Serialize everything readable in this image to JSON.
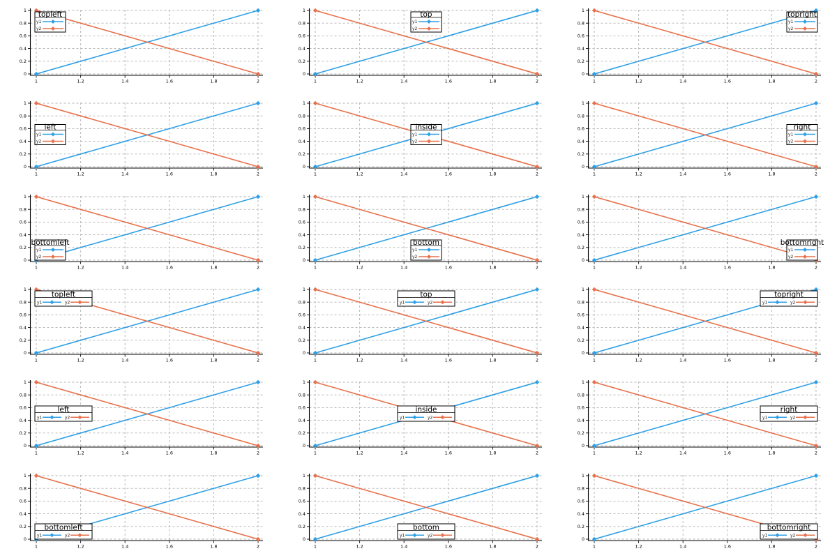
{
  "figure": {
    "rows": 6,
    "cols": 3,
    "background": "#ffffff",
    "grid_color": "#b0b0b0",
    "axis_color": "#000000",
    "legend_border_color": "#000000",
    "legend_background": "#ffffff"
  },
  "chart_data": {
    "type": "line",
    "x": [
      1,
      2
    ],
    "series": [
      {
        "name": "y1",
        "values": [
          0,
          1
        ],
        "color": "#2f9fe5",
        "marker": "diamond"
      },
      {
        "name": "y2",
        "values": [
          1,
          0
        ],
        "color": "#e7714b",
        "marker": "diamond"
      }
    ],
    "xlim": [
      1,
      2
    ],
    "ylim": [
      0,
      1
    ],
    "xticks": {
      "values": [
        1,
        1.2,
        1.4,
        1.6,
        1.8,
        2
      ],
      "labels": [
        "1",
        "1.2",
        "1.4",
        "1.6",
        "1.8",
        "2"
      ]
    },
    "yticks": {
      "values": [
        0,
        0.2,
        0.4,
        0.6,
        0.8,
        1
      ],
      "labels": [
        "0",
        "0.2",
        "0.4",
        "0.6",
        "0.8",
        "1"
      ]
    },
    "grid": true,
    "legend_position_note": "each subplot shows the same data with a titled legend at a different position",
    "subplots": [
      {
        "row": 1,
        "col": 1,
        "legend_title": "topleft",
        "legend_position": "topleft",
        "legend_orientation": "vertical"
      },
      {
        "row": 1,
        "col": 2,
        "legend_title": "top",
        "legend_position": "top",
        "legend_orientation": "vertical"
      },
      {
        "row": 1,
        "col": 3,
        "legend_title": "topright",
        "legend_position": "topright",
        "legend_orientation": "vertical"
      },
      {
        "row": 2,
        "col": 1,
        "legend_title": "left",
        "legend_position": "left",
        "legend_orientation": "vertical"
      },
      {
        "row": 2,
        "col": 2,
        "legend_title": "inside",
        "legend_position": "inside",
        "legend_orientation": "vertical"
      },
      {
        "row": 2,
        "col": 3,
        "legend_title": "right",
        "legend_position": "right",
        "legend_orientation": "vertical"
      },
      {
        "row": 3,
        "col": 1,
        "legend_title": "bottomleft",
        "legend_position": "bottomleft",
        "legend_orientation": "vertical"
      },
      {
        "row": 3,
        "col": 2,
        "legend_title": "bottom",
        "legend_position": "bottom",
        "legend_orientation": "vertical"
      },
      {
        "row": 3,
        "col": 3,
        "legend_title": "bottomright",
        "legend_position": "bottomright",
        "legend_orientation": "vertical"
      },
      {
        "row": 4,
        "col": 1,
        "legend_title": "topleft",
        "legend_position": "topleft",
        "legend_orientation": "horizontal"
      },
      {
        "row": 4,
        "col": 2,
        "legend_title": "top",
        "legend_position": "top",
        "legend_orientation": "horizontal"
      },
      {
        "row": 4,
        "col": 3,
        "legend_title": "topright",
        "legend_position": "topright",
        "legend_orientation": "horizontal"
      },
      {
        "row": 5,
        "col": 1,
        "legend_title": "left",
        "legend_position": "left",
        "legend_orientation": "horizontal"
      },
      {
        "row": 5,
        "col": 2,
        "legend_title": "inside",
        "legend_position": "inside",
        "legend_orientation": "horizontal"
      },
      {
        "row": 5,
        "col": 3,
        "legend_title": "right",
        "legend_position": "right",
        "legend_orientation": "horizontal"
      },
      {
        "row": 6,
        "col": 1,
        "legend_title": "bottomleft",
        "legend_position": "bottomleft",
        "legend_orientation": "horizontal"
      },
      {
        "row": 6,
        "col": 2,
        "legend_title": "bottom",
        "legend_position": "bottom",
        "legend_orientation": "horizontal"
      },
      {
        "row": 6,
        "col": 3,
        "legend_title": "bottomright",
        "legend_position": "bottomright",
        "legend_orientation": "horizontal"
      }
    ]
  }
}
